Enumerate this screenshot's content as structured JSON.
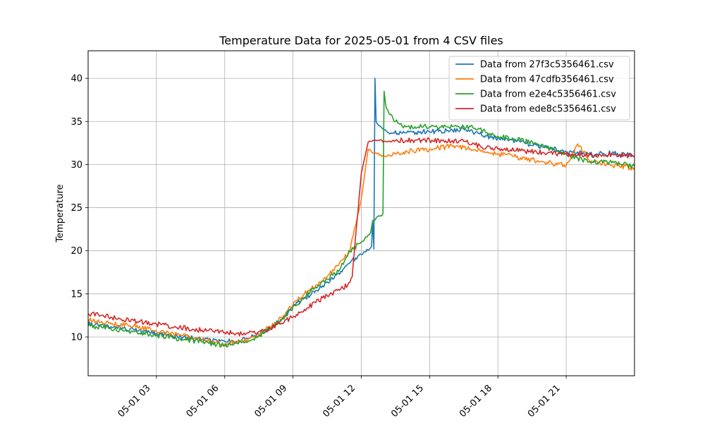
{
  "chart_data": {
    "type": "line",
    "title": "Temperature Data for 2025-05-01 from 4 CSV files",
    "xlabel": "",
    "ylabel": "Temperature",
    "xlim": [
      0,
      24
    ],
    "ylim": [
      5.5,
      43.2
    ],
    "grid": true,
    "legend_position": "top-right",
    "x_ticks": [
      {
        "value": 3,
        "label": "05-01 03"
      },
      {
        "value": 6,
        "label": "05-01 06"
      },
      {
        "value": 9,
        "label": "05-01 09"
      },
      {
        "value": 12,
        "label": "05-01 12"
      },
      {
        "value": 15,
        "label": "05-01 15"
      },
      {
        "value": 18,
        "label": "05-01 18"
      },
      {
        "value": 21,
        "label": "05-01 21"
      }
    ],
    "y_ticks": [
      {
        "value": 10,
        "label": "10"
      },
      {
        "value": 15,
        "label": "15"
      },
      {
        "value": 20,
        "label": "20"
      },
      {
        "value": 25,
        "label": "25"
      },
      {
        "value": 30,
        "label": "30"
      },
      {
        "value": 35,
        "label": "35"
      },
      {
        "value": 40,
        "label": "40"
      }
    ],
    "series": [
      {
        "name": "Data from 27f3c5356461.csv",
        "color": "#1f77b4",
        "points": [
          [
            0,
            11.5
          ],
          [
            1,
            11.2
          ],
          [
            2,
            10.8
          ],
          [
            3,
            10.4
          ],
          [
            4,
            10.0
          ],
          [
            5,
            9.7
          ],
          [
            6,
            9.5
          ],
          [
            6.5,
            9.5
          ],
          [
            7,
            9.8
          ],
          [
            7.5,
            10.3
          ],
          [
            8,
            11.1
          ],
          [
            8.5,
            12.0
          ],
          [
            9,
            13.5
          ],
          [
            9.5,
            14.5
          ],
          [
            10,
            15.4
          ],
          [
            10.5,
            16.4
          ],
          [
            11,
            17.4
          ],
          [
            11.5,
            18.6
          ],
          [
            12,
            19.6
          ],
          [
            12.45,
            20.5
          ],
          [
            12.5,
            23.5
          ],
          [
            12.55,
            20.2
          ],
          [
            12.6,
            40.0
          ],
          [
            12.65,
            35.0
          ],
          [
            12.8,
            34.5
          ],
          [
            13.0,
            34.0
          ],
          [
            13.2,
            33.7
          ],
          [
            13.6,
            33.6
          ],
          [
            14,
            33.7
          ],
          [
            15,
            33.8
          ],
          [
            16,
            34.0
          ],
          [
            16.5,
            34.1
          ],
          [
            17,
            33.7
          ],
          [
            17.5,
            33.3
          ],
          [
            18,
            33.1
          ],
          [
            18.5,
            32.9
          ],
          [
            19,
            32.6
          ],
          [
            20,
            32.0
          ],
          [
            21,
            31.5
          ],
          [
            22,
            31.2
          ],
          [
            23,
            31.3
          ],
          [
            24,
            31.0
          ]
        ]
      },
      {
        "name": "Data from 47cdfb356461.csv",
        "color": "#ff7f0e",
        "points": [
          [
            0,
            12.0
          ],
          [
            1,
            11.5
          ],
          [
            2,
            11.3
          ],
          [
            3,
            10.7
          ],
          [
            4,
            10.2
          ],
          [
            5,
            9.7
          ],
          [
            6,
            9.2
          ],
          [
            6.5,
            9.4
          ],
          [
            7,
            9.6
          ],
          [
            7.5,
            10.3
          ],
          [
            8,
            11.2
          ],
          [
            8.5,
            12.2
          ],
          [
            9,
            13.8
          ],
          [
            9.5,
            15.0
          ],
          [
            10,
            16.0
          ],
          [
            10.5,
            17.0
          ],
          [
            11,
            18.3
          ],
          [
            11.5,
            20.0
          ],
          [
            12.0,
            26.0
          ],
          [
            12.3,
            31.8
          ],
          [
            12.6,
            31.3
          ],
          [
            13.0,
            31.0
          ],
          [
            13.5,
            31.2
          ],
          [
            14,
            31.5
          ],
          [
            15,
            31.8
          ],
          [
            16,
            32.1
          ],
          [
            16.5,
            32.0
          ],
          [
            17,
            31.7
          ],
          [
            17.5,
            31.4
          ],
          [
            18,
            31.2
          ],
          [
            19,
            30.8
          ],
          [
            20,
            30.3
          ],
          [
            21,
            29.9
          ],
          [
            21.5,
            32.4
          ],
          [
            22,
            30.5
          ],
          [
            23,
            29.9
          ],
          [
            24,
            29.6
          ]
        ]
      },
      {
        "name": "Data from e2e4c5356461.csv",
        "color": "#2ca02c",
        "points": [
          [
            0,
            11.3
          ],
          [
            1,
            11.0
          ],
          [
            2,
            10.6
          ],
          [
            3,
            10.2
          ],
          [
            4,
            9.8
          ],
          [
            5,
            9.4
          ],
          [
            6,
            9.0
          ],
          [
            6.5,
            9.3
          ],
          [
            7,
            9.4
          ],
          [
            7.5,
            10.1
          ],
          [
            8,
            11.0
          ],
          [
            8.5,
            12.0
          ],
          [
            9,
            13.5
          ],
          [
            9.5,
            14.6
          ],
          [
            10,
            15.8
          ],
          [
            10.5,
            16.7
          ],
          [
            11,
            17.6
          ],
          [
            11.5,
            20.0
          ],
          [
            12.0,
            21.0
          ],
          [
            12.4,
            22.0
          ],
          [
            12.5,
            23.5
          ],
          [
            12.8,
            24.0
          ],
          [
            12.95,
            24.3
          ],
          [
            13.0,
            38.5
          ],
          [
            13.1,
            36.5
          ],
          [
            13.4,
            35.3
          ],
          [
            13.8,
            34.4
          ],
          [
            14,
            34.4
          ],
          [
            15,
            34.4
          ],
          [
            16,
            34.4
          ],
          [
            16.5,
            34.4
          ],
          [
            17,
            34.2
          ],
          [
            17.5,
            33.7
          ],
          [
            18,
            33.3
          ],
          [
            19,
            32.8
          ],
          [
            20,
            32.2
          ],
          [
            21,
            31.2
          ],
          [
            22,
            30.3
          ],
          [
            23,
            30.2
          ],
          [
            24,
            29.8
          ]
        ]
      },
      {
        "name": "Data from ede8c5356461.csv",
        "color": "#d62728",
        "points": [
          [
            0,
            12.7
          ],
          [
            1,
            12.3
          ],
          [
            2,
            11.9
          ],
          [
            3,
            11.5
          ],
          [
            4,
            11.1
          ],
          [
            5,
            10.8
          ],
          [
            6,
            10.5
          ],
          [
            6.5,
            10.4
          ],
          [
            7,
            10.5
          ],
          [
            7.5,
            10.6
          ],
          [
            8,
            11.0
          ],
          [
            8.5,
            11.6
          ],
          [
            9,
            12.3
          ],
          [
            9.5,
            13.2
          ],
          [
            10,
            14.0
          ],
          [
            10.5,
            14.8
          ],
          [
            11,
            15.5
          ],
          [
            11.4,
            16.0
          ],
          [
            11.6,
            17.0
          ],
          [
            12.0,
            29.0
          ],
          [
            12.3,
            32.6
          ],
          [
            12.6,
            32.8
          ],
          [
            13.0,
            32.7
          ],
          [
            13.5,
            32.8
          ],
          [
            14,
            32.8
          ],
          [
            15,
            32.8
          ],
          [
            16,
            32.8
          ],
          [
            16.5,
            32.7
          ],
          [
            17,
            32.3
          ],
          [
            17.5,
            32.0
          ],
          [
            18,
            31.8
          ],
          [
            19,
            31.6
          ],
          [
            20,
            31.4
          ],
          [
            21,
            31.2
          ],
          [
            22,
            31.1
          ],
          [
            23,
            31.2
          ],
          [
            24,
            31.0
          ]
        ]
      }
    ]
  }
}
